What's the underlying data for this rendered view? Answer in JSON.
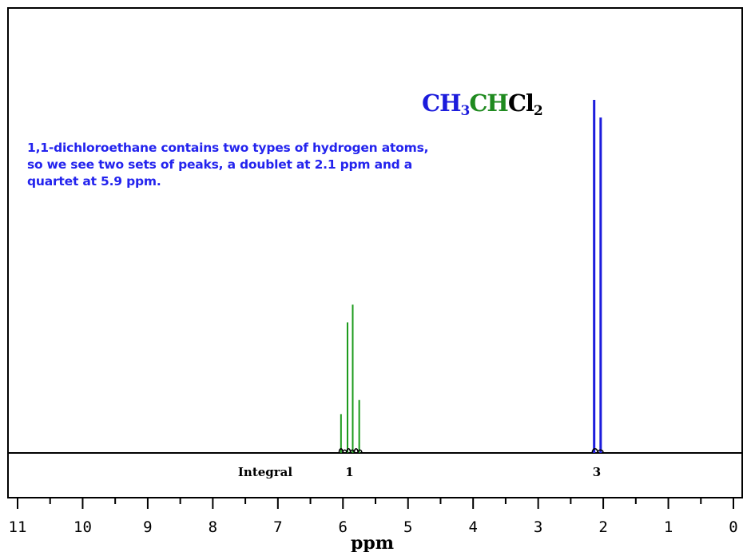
{
  "formula": {
    "parts": [
      {
        "text": "CH",
        "color": "#1c1cdc"
      },
      {
        "sub": "3",
        "color": "#1c1cdc"
      },
      {
        "text": "CH",
        "color": "#1f8a1f"
      },
      {
        "text": "Cl",
        "color": "#000000"
      },
      {
        "sub": "2",
        "color": "#000000"
      }
    ]
  },
  "annotation": {
    "line1": "1,1-dichloroethane contains two types of hydrogen atoms,",
    "line2": "so we see two sets of peaks, a doublet at 2.1 ppm and a",
    "line3": "quartet at 5.9 ppm."
  },
  "chart_data": {
    "type": "nmr-spectrum",
    "title": "",
    "xlabel": "ppm",
    "ylabel": "",
    "xlim": [
      11,
      0
    ],
    "x_reversed": true,
    "tick_labels": [
      "11",
      "10",
      "9",
      "8",
      "7",
      "6",
      "5",
      "4",
      "3",
      "2",
      "1",
      "0"
    ],
    "tick_values": [
      11,
      10,
      9,
      8,
      7,
      6,
      5,
      4,
      3,
      2,
      1,
      0
    ],
    "integral_label": "Integral",
    "integrals": [
      {
        "label": "1",
        "ppm": 5.9
      },
      {
        "label": "3",
        "ppm": 2.1
      }
    ],
    "series": [
      {
        "group": "CH quartet",
        "color": "#1a9a1a",
        "peaks": [
          {
            "ppm": 6.03,
            "relative_height": 0.11
          },
          {
            "ppm": 5.93,
            "relative_height": 0.37
          },
          {
            "ppm": 5.85,
            "relative_height": 0.42
          },
          {
            "ppm": 5.75,
            "relative_height": 0.15
          }
        ]
      },
      {
        "group": "CH3 doublet",
        "color": "#1c1cdc",
        "peaks": [
          {
            "ppm": 2.14,
            "relative_height": 1.0
          },
          {
            "ppm": 2.04,
            "relative_height": 0.95
          }
        ]
      }
    ]
  }
}
